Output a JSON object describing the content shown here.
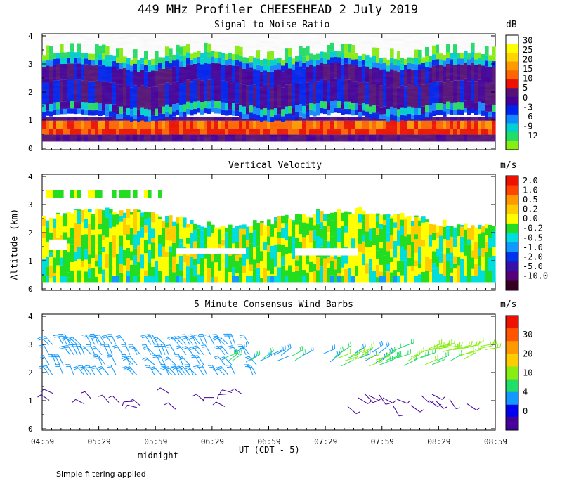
{
  "title": "449 MHz Profiler CHEESEHEAD  2 July 2019",
  "y_axis_label": "Altitude (km)",
  "x_axis_label": "UT  (CDT - 5)",
  "midnight_label": "midnight",
  "footnote": "Simple filtering applied",
  "chart_data": [
    {
      "type": "heatmap",
      "title": "Signal to Noise Ratio",
      "unit": "dB",
      "ylim": [
        0,
        4
      ],
      "yticks": [
        "0",
        "1",
        "2",
        "3",
        "4"
      ],
      "xticks": [
        "04:59",
        "05:29",
        "05:59",
        "06:29",
        "06:59",
        "07:29",
        "07:59",
        "08:29",
        "08:59"
      ],
      "colorbar_labels": [
        "30",
        "25",
        "20",
        "15",
        "10",
        "5",
        "0",
        "-3",
        "-6",
        "-9",
        "-12"
      ],
      "colorbar_colors": [
        "#ffffff",
        "#ffff00",
        "#ffd400",
        "#ff9900",
        "#ff6600",
        "#ee1100",
        "#551177",
        "#440099",
        "#0022ee",
        "#1188ff",
        "#00d0d0",
        "#22dd66",
        "#88ee11"
      ],
      "layers": [
        {
          "name": "near-surface purple",
          "alt": [
            0.28,
            0.52
          ],
          "db": 5
        },
        {
          "name": "boundary layer red/orange",
          "alt": [
            0.52,
            1.0
          ],
          "db": 12
        },
        {
          "name": "elevated blue band",
          "alt": [
            1.0,
            1.3
          ],
          "db": -3
        },
        {
          "name": "purple band",
          "alt": [
            1.5,
            2.9
          ],
          "db": 2
        },
        {
          "name": "upper green/cyan fringe",
          "alt": [
            2.9,
            3.65
          ],
          "db": -9
        }
      ]
    },
    {
      "type": "heatmap",
      "title": "Vertical Velocity",
      "unit": "m/s",
      "ylim": [
        0,
        4
      ],
      "yticks": [
        "0",
        "1",
        "2",
        "3",
        "4"
      ],
      "xticks": [
        "04:59",
        "05:29",
        "05:59",
        "06:29",
        "06:59",
        "07:29",
        "07:59",
        "08:29",
        "08:59"
      ],
      "colorbar_labels": [
        "2.0",
        "1.0",
        "0.5",
        "0.2",
        "0.0",
        "-0.2",
        "-0.5",
        "-1.0",
        "-2.0",
        "-5.0",
        "-10.0"
      ],
      "colorbar_colors": [
        "#ee1100",
        "#ff4400",
        "#ff9900",
        "#ffcc00",
        "#ffff00",
        "#22dd22",
        "#00dddd",
        "#1199ff",
        "#0033ee",
        "#3311aa",
        "#550077",
        "#330022"
      ],
      "coverage_alt": [
        0.3,
        2.85
      ],
      "dominant_values": [
        0.0,
        -0.2,
        0.2
      ]
    },
    {
      "type": "wind_barbs",
      "title": "5 Minute Consensus Wind Barbs",
      "unit": "m/s",
      "ylim": [
        0,
        4
      ],
      "yticks": [
        "0",
        "1",
        "2",
        "3",
        "4"
      ],
      "xticks": [
        "04:59",
        "05:29",
        "05:59",
        "06:29",
        "06:59",
        "07:29",
        "07:59",
        "08:29",
        "08:59"
      ],
      "colorbar_labels": [
        "30",
        "20",
        "10",
        "4",
        "0"
      ],
      "colorbar_colors": [
        "#ee1100",
        "#ff5500",
        "#ff9900",
        "#ffcc00",
        "#88ee11",
        "#22dd66",
        "#1199ff",
        "#0000ee",
        "#440099"
      ],
      "speed_by_layer": [
        {
          "alt": [
            0.5,
            1.5
          ],
          "speed": 3
        },
        {
          "alt": [
            1.8,
            3.5
          ],
          "speed": 8
        },
        {
          "alt": [
            2.2,
            2.9
          ],
          "speed": 11,
          "time_range": [
            "07:29",
            "08:59"
          ]
        }
      ]
    }
  ]
}
